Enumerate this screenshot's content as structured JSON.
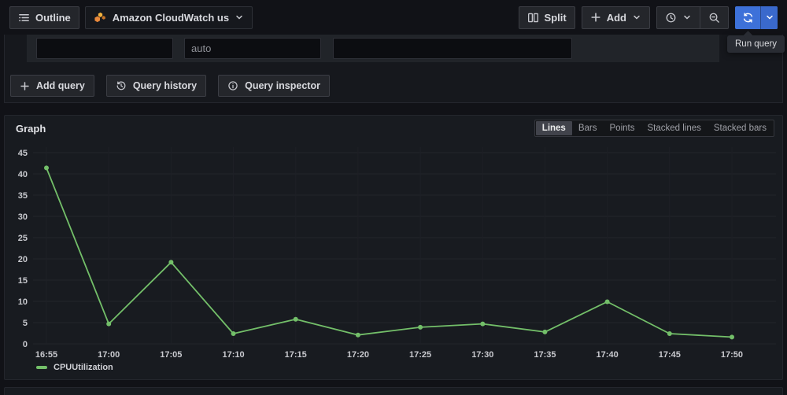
{
  "toolbar": {
    "outline_label": "Outline",
    "datasource_label": "Amazon CloudWatch us",
    "split_label": "Split",
    "add_label": "Add",
    "run_query_tooltip": "Run query"
  },
  "query_editor": {
    "inputs": [
      {
        "value": "",
        "placeholder": ""
      },
      {
        "value": "",
        "placeholder": "auto"
      },
      {
        "value": "",
        "placeholder": ""
      }
    ],
    "add_query_label": "Add query",
    "query_history_label": "Query history",
    "query_inspector_label": "Query inspector"
  },
  "graph_panel": {
    "title": "Graph",
    "modes": [
      "Lines",
      "Bars",
      "Points",
      "Stacked lines",
      "Stacked bars"
    ],
    "active_mode": "Lines",
    "legend": "CPUUtilization"
  },
  "chart_data": {
    "type": "line",
    "title": "Graph",
    "x": [
      "16:55",
      "17:00",
      "17:05",
      "17:10",
      "17:15",
      "17:20",
      "17:25",
      "17:30",
      "17:35",
      "17:40",
      "17:45",
      "17:50"
    ],
    "series": [
      {
        "name": "CPUUtilization",
        "values": [
          41.4,
          4.7,
          19.2,
          2.4,
          5.8,
          2.1,
          3.9,
          4.7,
          2.8,
          9.9,
          2.4,
          1.6
        ],
        "color": "#73bf69"
      }
    ],
    "ylim": [
      0,
      45
    ],
    "ytick_step": 5,
    "grid": true,
    "legend_position": "bottom-left"
  },
  "colors": {
    "accent_blue": "#3d71d9",
    "series_green": "#73bf69",
    "cloudwatch_orange": "#e8883b",
    "panel_bg": "#181b20",
    "page_bg": "#111217"
  }
}
